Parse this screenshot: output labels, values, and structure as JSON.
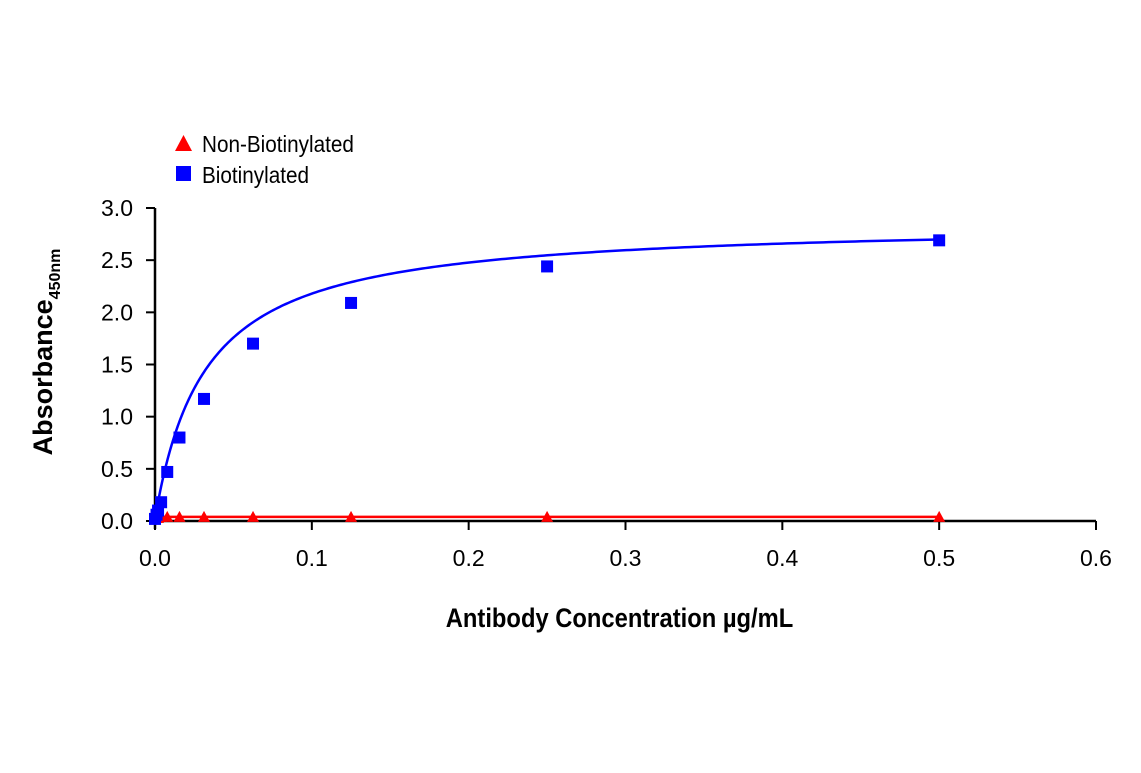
{
  "chart_data": {
    "type": "line",
    "title": "",
    "xlabel": "Antibody Concentration µg/mL",
    "ylabel": "Absorbance",
    "ylabel_subscript": "450nm",
    "xlim": [
      0,
      0.6
    ],
    "ylim": [
      0,
      3.0
    ],
    "xticks": [
      "0.0",
      "0.1",
      "0.2",
      "0.3",
      "0.4",
      "0.5",
      "0.6"
    ],
    "yticks": [
      "0.0",
      "0.5",
      "1.0",
      "1.5",
      "2.0",
      "2.5",
      "3.0"
    ],
    "grid": false,
    "legend_placement": "top-left",
    "series": [
      {
        "name": "Non-Biotinylated",
        "color": "#ff0000",
        "marker": "triangle",
        "x": [
          0,
          0.00098,
          0.00195,
          0.0039,
          0.0078,
          0.0156,
          0.03125,
          0.0625,
          0.125,
          0.25,
          0.5
        ],
        "y": [
          0.02,
          0.03,
          0.03,
          0.04,
          0.04,
          0.04,
          0.04,
          0.04,
          0.04,
          0.04,
          0.04
        ]
      },
      {
        "name": "Biotinylated",
        "color": "#0000ff",
        "marker": "square",
        "x": [
          0,
          0.00098,
          0.00195,
          0.0039,
          0.0078,
          0.0156,
          0.03125,
          0.0625,
          0.125,
          0.25,
          0.5
        ],
        "y": [
          0.02,
          0.06,
          0.1,
          0.18,
          0.47,
          0.8,
          1.17,
          1.7,
          2.09,
          2.44,
          2.69
        ]
      }
    ]
  }
}
